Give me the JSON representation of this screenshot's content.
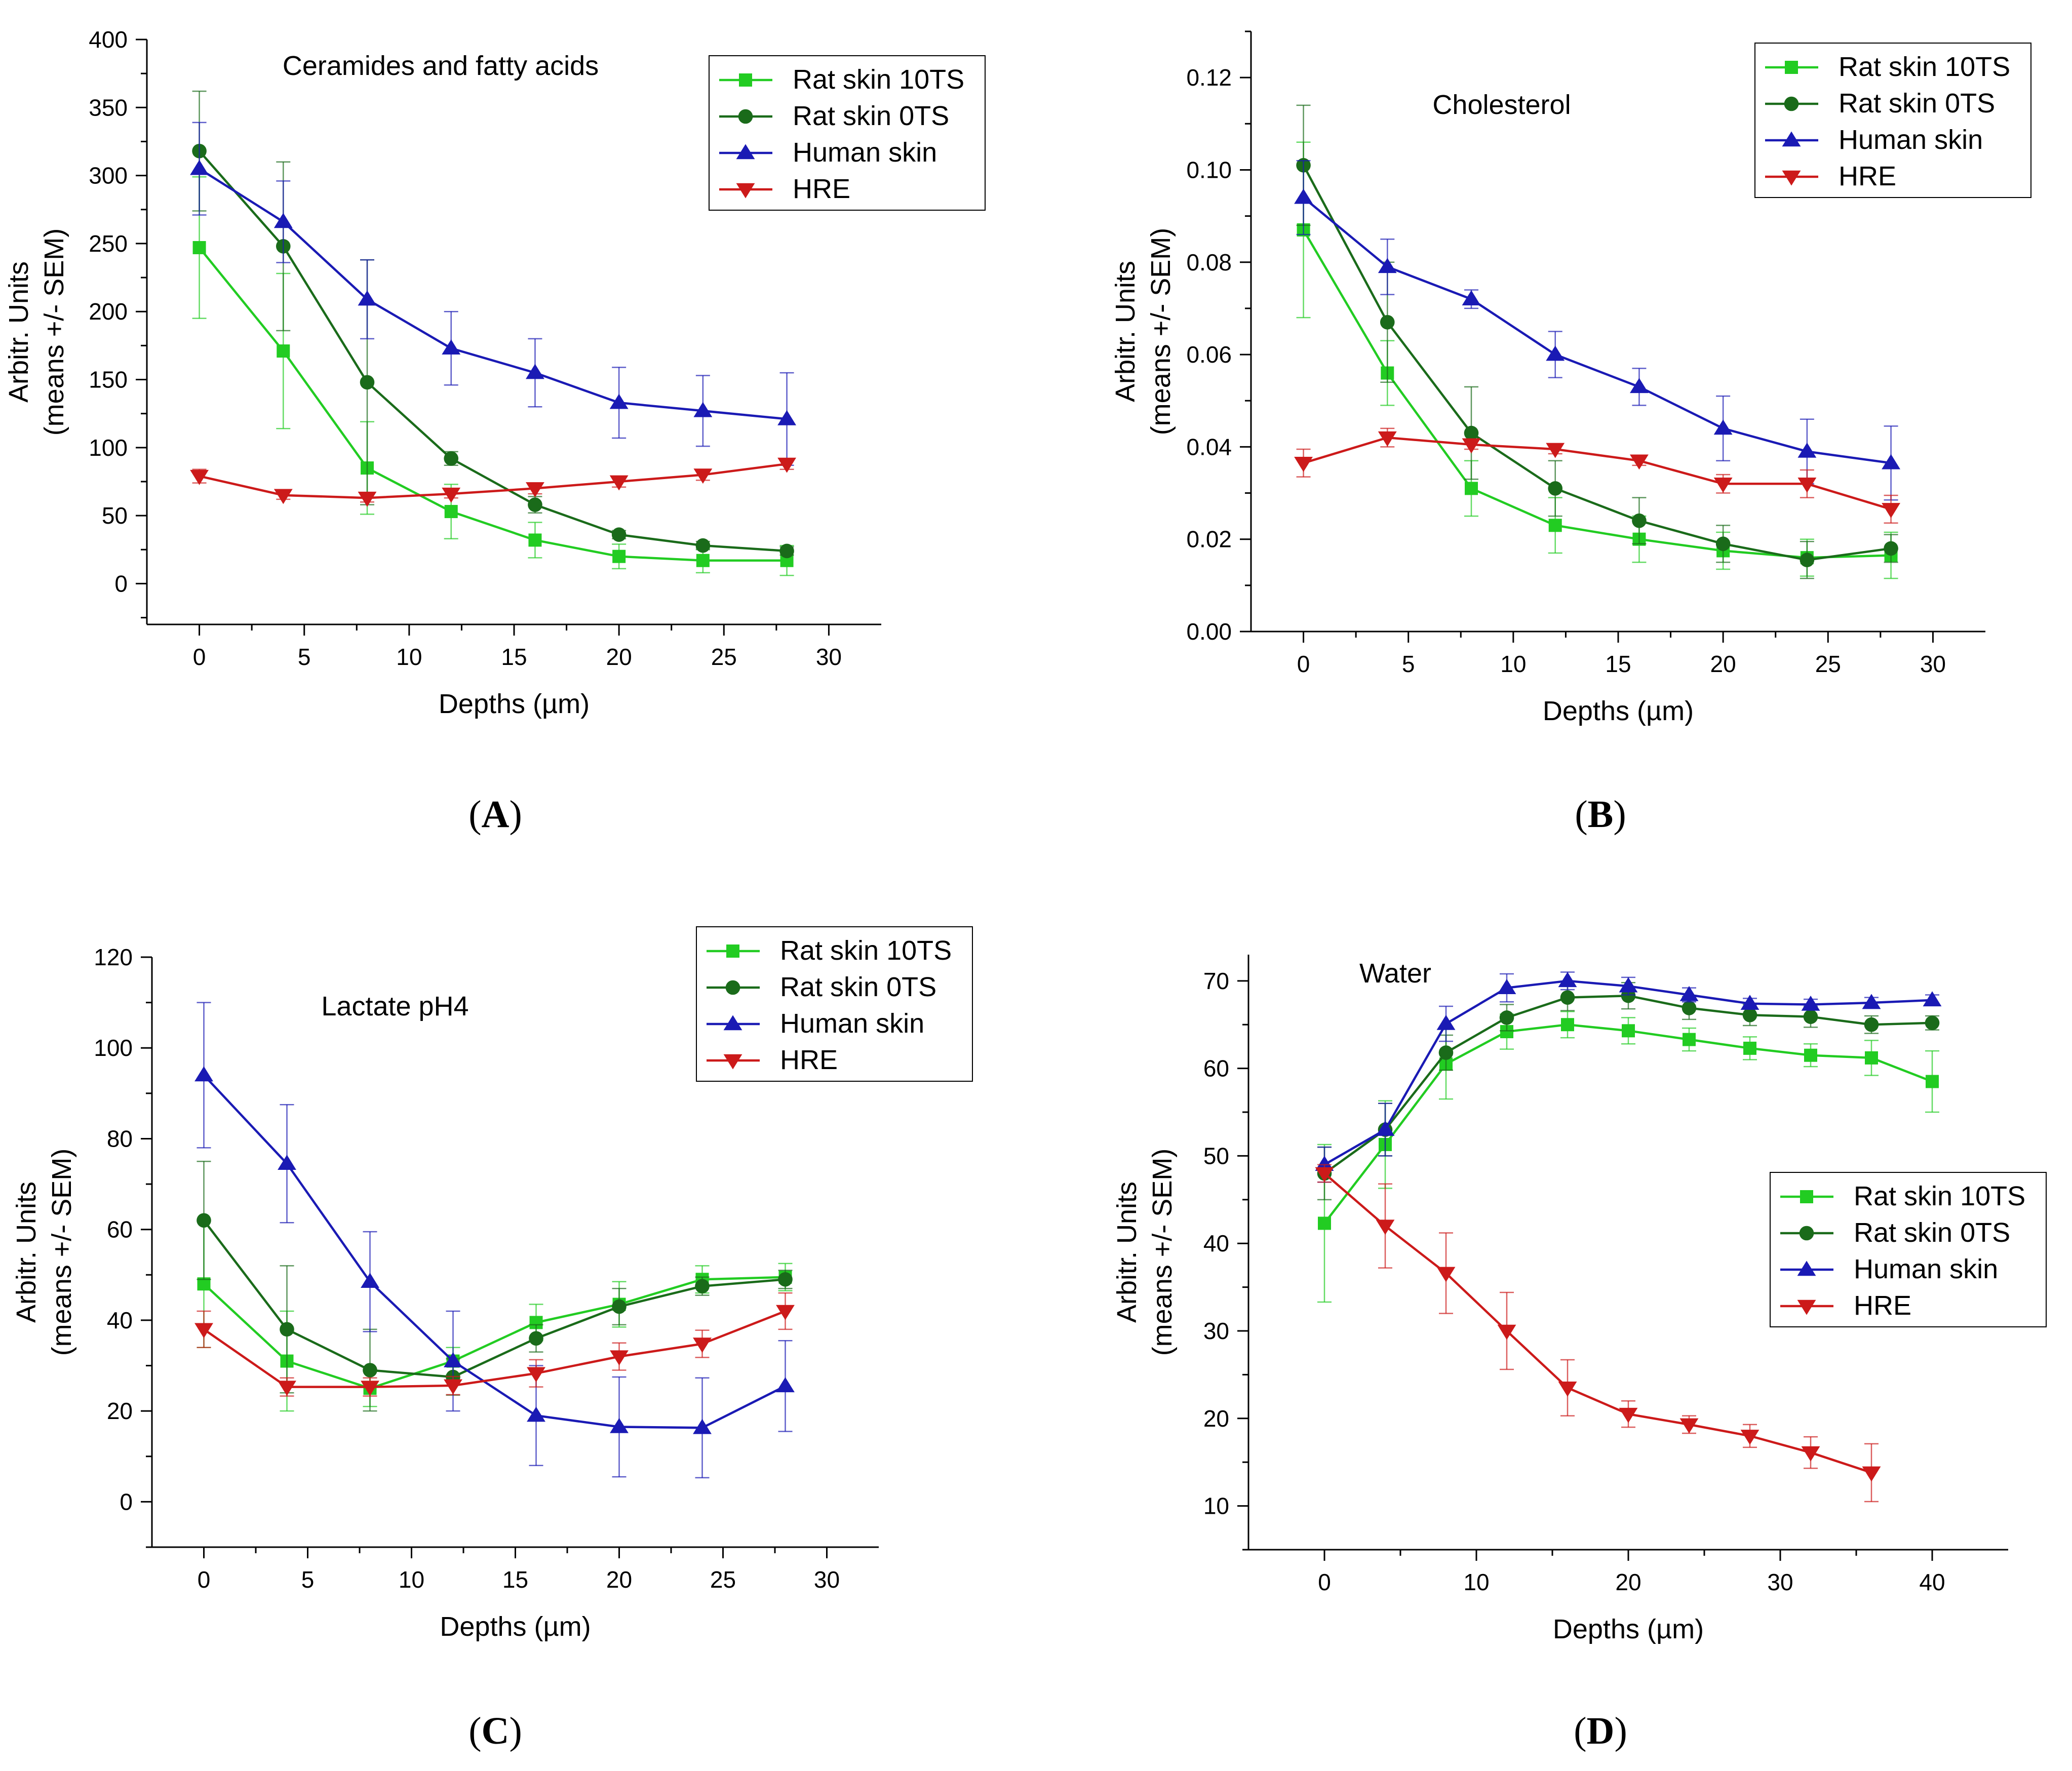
{
  "figure": {
    "series_styles": {
      "Rat skin 10TS": {
        "color": "#22cc22",
        "marker": "square"
      },
      "Rat skin 0TS": {
        "color": "#1a6b1a",
        "marker": "circle"
      },
      "Human skin": {
        "color": "#1a1ab4",
        "marker": "triangle-up"
      },
      "HRE": {
        "color": "#cc1a1a",
        "marker": "triangle-down"
      }
    },
    "panel_labels": [
      "A",
      "B",
      "C",
      "D"
    ]
  },
  "chart_data": [
    {
      "type": "line",
      "panel": "A",
      "title": "Ceramides and fatty acids",
      "xlabel": "Depths (µm)",
      "ylabel_line1": "Arbitr. Units",
      "ylabel_line2": "(means +/- SEM)",
      "xlim": [
        -2.5,
        32.5
      ],
      "ylim": [
        -30,
        400
      ],
      "xticks": [
        "0",
        "5",
        "10",
        "15",
        "20",
        "25",
        "30"
      ],
      "xtick_values": [
        0,
        5,
        10,
        15,
        20,
        25,
        30
      ],
      "yticks": [
        "0",
        "50",
        "100",
        "150",
        "200",
        "250",
        "300",
        "350",
        "400"
      ],
      "ytick_values": [
        0,
        50,
        100,
        150,
        200,
        250,
        300,
        350,
        400
      ],
      "legend_position": "top-right",
      "series": [
        {
          "name": "Rat skin 10TS",
          "x": [
            0,
            4,
            8,
            12,
            16,
            20,
            24,
            28
          ],
          "y": [
            247,
            171,
            85,
            53,
            32,
            20,
            17,
            17
          ],
          "err": [
            52,
            57,
            34,
            20,
            13,
            9,
            9,
            11
          ]
        },
        {
          "name": "Rat skin 0TS",
          "x": [
            0,
            4,
            8,
            12,
            16,
            20,
            24,
            28
          ],
          "y": [
            318,
            248,
            148,
            92,
            58,
            36,
            28,
            24
          ],
          "err": [
            44,
            62,
            90,
            5,
            6,
            3,
            3,
            3
          ]
        },
        {
          "name": "Human skin",
          "x": [
            0,
            4,
            8,
            12,
            16,
            20,
            24,
            28
          ],
          "y": [
            305,
            266,
            209,
            173,
            155,
            133,
            127,
            121
          ],
          "err": [
            34,
            30,
            29,
            27,
            25,
            26,
            26,
            34
          ]
        },
        {
          "name": "HRE",
          "x": [
            0,
            4,
            8,
            12,
            16,
            20,
            24,
            28
          ],
          "y": [
            79,
            65,
            63,
            66,
            70,
            75,
            80,
            88
          ],
          "err": [
            5,
            3,
            3,
            3,
            4,
            4,
            4,
            4
          ]
        }
      ]
    },
    {
      "type": "line",
      "panel": "B",
      "title": "Cholesterol",
      "xlabel": "Depths (µm)",
      "ylabel_line1": "Arbitr. Units",
      "ylabel_line2": "(means +/- SEM)",
      "xlim": [
        -2.5,
        32.5
      ],
      "ylim": [
        0,
        0.13
      ],
      "xticks": [
        "0",
        "5",
        "10",
        "15",
        "20",
        "25",
        "30"
      ],
      "xtick_values": [
        0,
        5,
        10,
        15,
        20,
        25,
        30
      ],
      "yticks": [
        "0.00",
        "0.02",
        "0.04",
        "0.06",
        "0.08",
        "0.10",
        "0.12"
      ],
      "ytick_values": [
        0,
        0.02,
        0.04,
        0.06,
        0.08,
        0.1,
        0.12
      ],
      "legend_position": "top-right",
      "series": [
        {
          "name": "Rat skin 10TS",
          "x": [
            0,
            4,
            8,
            12,
            16,
            20,
            24,
            28
          ],
          "y": [
            0.087,
            0.056,
            0.031,
            0.023,
            0.02,
            0.0175,
            0.016,
            0.0165
          ],
          "err": [
            0.019,
            0.007,
            0.006,
            0.006,
            0.005,
            0.004,
            0.004,
            0.005
          ]
        },
        {
          "name": "Rat skin 0TS",
          "x": [
            0,
            4,
            8,
            12,
            16,
            20,
            24,
            28
          ],
          "y": [
            0.101,
            0.067,
            0.043,
            0.031,
            0.024,
            0.019,
            0.0155,
            0.018
          ],
          "err": [
            0.013,
            0.013,
            0.01,
            0.006,
            0.005,
            0.004,
            0.004,
            0.003
          ]
        },
        {
          "name": "Human skin",
          "x": [
            0,
            4,
            8,
            12,
            16,
            20,
            24,
            28
          ],
          "y": [
            0.094,
            0.079,
            0.072,
            0.06,
            0.053,
            0.044,
            0.039,
            0.0365
          ],
          "err": [
            0.008,
            0.006,
            0.002,
            0.005,
            0.004,
            0.007,
            0.007,
            0.008
          ]
        },
        {
          "name": "HRE",
          "x": [
            0,
            4,
            8,
            12,
            16,
            20,
            24,
            28
          ],
          "y": [
            0.0365,
            0.042,
            0.0405,
            0.0395,
            0.037,
            0.032,
            0.032,
            0.0265
          ],
          "err": [
            0.003,
            0.002,
            0.001,
            0.001,
            0.001,
            0.002,
            0.003,
            0.003
          ]
        }
      ]
    },
    {
      "type": "line",
      "panel": "C",
      "title": "Lactate pH4",
      "xlabel": "Depths (µm)",
      "ylabel_line1": "Arbitr. Units",
      "ylabel_line2": "(means +/- SEM)",
      "xlim": [
        -2.5,
        32.5
      ],
      "ylim": [
        -10,
        120
      ],
      "xticks": [
        "0",
        "5",
        "10",
        "15",
        "20",
        "25",
        "30"
      ],
      "xtick_values": [
        0,
        5,
        10,
        15,
        20,
        25,
        30
      ],
      "yticks": [
        "0",
        "20",
        "40",
        "60",
        "80",
        "100",
        "120"
      ],
      "ytick_values": [
        0,
        20,
        40,
        60,
        80,
        100,
        120
      ],
      "legend_position": "top-right",
      "series": [
        {
          "name": "Rat skin 10TS",
          "x": [
            0,
            4,
            8,
            12,
            16,
            20,
            24,
            28
          ],
          "y": [
            48,
            31,
            25,
            31,
            39.5,
            43.5,
            49,
            49.5
          ],
          "err": [
            14,
            11,
            4,
            3,
            4,
            5,
            3,
            3
          ]
        },
        {
          "name": "Rat skin 0TS",
          "x": [
            0,
            4,
            8,
            12,
            16,
            20,
            24,
            28
          ],
          "y": [
            62,
            38,
            29,
            27.5,
            36,
            43,
            47.5,
            49
          ],
          "err": [
            13,
            14,
            9,
            4,
            3,
            4,
            2,
            2
          ]
        },
        {
          "name": "Human skin",
          "x": [
            0,
            4,
            8,
            12,
            16,
            20,
            24,
            28
          ],
          "y": [
            94,
            74.5,
            48.5,
            31,
            19,
            16.5,
            16.3,
            25.5
          ],
          "err": [
            16,
            13,
            11,
            11,
            11,
            11,
            11,
            10
          ]
        },
        {
          "name": "HRE",
          "x": [
            0,
            4,
            8,
            12,
            16,
            20,
            24,
            28
          ],
          "y": [
            38,
            25.3,
            25.3,
            25.6,
            28.3,
            32,
            34.8,
            42
          ],
          "err": [
            4,
            2,
            2,
            2,
            3,
            3,
            3,
            4
          ]
        }
      ]
    },
    {
      "type": "line",
      "panel": "D",
      "title": "Water",
      "xlabel": "Depths (µm)",
      "ylabel_line1": "Arbitr. Units",
      "ylabel_line2": "(means +/- SEM)",
      "xlim": [
        -5,
        45
      ],
      "ylim": [
        5,
        73
      ],
      "xticks": [
        "0",
        "10",
        "20",
        "30",
        "40"
      ],
      "xtick_values": [
        0,
        10,
        20,
        30,
        40
      ],
      "yticks": [
        "10",
        "20",
        "30",
        "40",
        "50",
        "60",
        "70"
      ],
      "ytick_values": [
        10,
        20,
        30,
        40,
        50,
        60,
        70
      ],
      "legend_position": "center-right",
      "series": [
        {
          "name": "Rat skin 10TS",
          "x": [
            0,
            4,
            8,
            12,
            16,
            20,
            24,
            28,
            32,
            36,
            40
          ],
          "y": [
            42.3,
            51.3,
            60.5,
            64.2,
            65,
            64.3,
            63.3,
            62.3,
            61.5,
            61.2,
            58.5
          ],
          "err": [
            9,
            5,
            4,
            2,
            1.5,
            1.5,
            1.3,
            1.3,
            1.3,
            2,
            3.5
          ]
        },
        {
          "name": "Rat skin 0TS",
          "x": [
            0,
            4,
            8,
            12,
            16,
            20,
            24,
            28,
            32,
            36,
            40
          ],
          "y": [
            48,
            53,
            61.8,
            65.8,
            68.1,
            68.3,
            66.9,
            66.1,
            65.9,
            65,
            65.2
          ],
          "err": [
            3,
            3,
            2,
            1.5,
            1.5,
            1.5,
            1.3,
            1.2,
            1.2,
            1,
            0.8
          ]
        },
        {
          "name": "Human skin",
          "x": [
            0,
            4,
            8,
            12,
            16,
            20,
            24,
            28,
            32,
            36,
            40
          ],
          "y": [
            49,
            53,
            65.1,
            69.2,
            70,
            69.4,
            68.4,
            67.4,
            67.3,
            67.5,
            67.8
          ],
          "err": [
            2,
            3,
            2,
            1.6,
            1,
            1,
            0.8,
            0.6,
            0.6,
            0.6,
            0.6
          ]
        },
        {
          "name": "HRE",
          "x": [
            0,
            4,
            8,
            12,
            16,
            20,
            24,
            28,
            32,
            36
          ],
          "y": [
            48,
            42,
            36.6,
            30,
            23.5,
            20.5,
            19.3,
            18,
            16.1,
            13.8
          ],
          "err": [
            1,
            4.8,
            4.6,
            4.4,
            3.2,
            1.5,
            1,
            1.3,
            1.8,
            3.3
          ]
        }
      ]
    }
  ]
}
